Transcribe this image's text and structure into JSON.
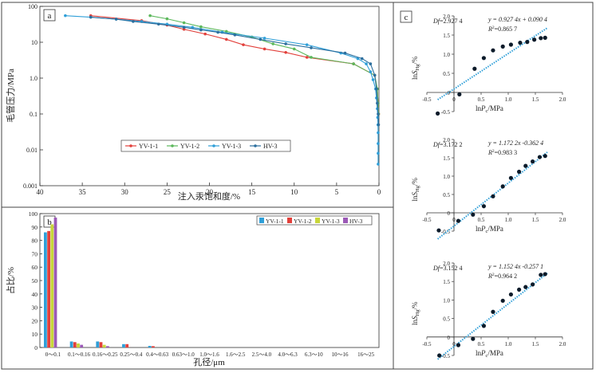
{
  "panels": {
    "a": {
      "label": "a",
      "type": "line",
      "xlabel": "注入汞饱和度/%",
      "ylabel": "毛管压力/MPa",
      "y_scale": "log",
      "x_reversed": true,
      "xlim": [
        40,
        0
      ],
      "ylim": [
        0.001,
        100
      ],
      "xticks": [
        "40",
        "35",
        "30",
        "25",
        "20",
        "15",
        "10",
        "5",
        "0"
      ],
      "yticks": [
        "100",
        "10",
        "1.0",
        "0.1",
        "0.01",
        "0.001"
      ],
      "legend": [
        "YV-1-1",
        "YV-1-2",
        "YV-1-3",
        "HV-3"
      ],
      "colors": [
        "#e2403b",
        "#5cb85c",
        "#2f9fd8",
        "#2c6f9e"
      ],
      "chart_data": {
        "type": "line",
        "series": [
          {
            "name": "YV-1-1",
            "x": [
              34,
              28,
              25,
              23,
              20.5,
              18,
              16,
              13.5,
              11,
              8.5,
              3,
              0.5,
              0.2,
              0.1,
              0.05
            ],
            "y": [
              55,
              40,
              30,
              23,
              17,
              12,
              8.5,
              6.5,
              5.2,
              3.8,
              2.5,
              1.2,
              0.5,
              0.2,
              0.1
            ]
          },
          {
            "name": "YV-1-2",
            "x": [
              27,
              25,
              23,
              21,
              18,
              15,
              12.5,
              10,
              8,
              3,
              0.5,
              0.2,
              0.1,
              0.05
            ],
            "y": [
              55,
              45,
              35,
              27,
              20,
              14,
              9,
              6.5,
              3.8,
              2.5,
              1.2,
              0.5,
              0.2,
              0.1
            ]
          },
          {
            "name": "YV-1-3",
            "x": [
              37,
              34,
              31,
              28,
              25,
              22,
              18.5,
              13.5,
              8.5,
              4.5,
              2.5,
              1.5,
              1,
              0.7,
              0.4,
              0.3,
              0.2,
              0.15,
              0.12,
              0.1,
              0.1,
              0.1,
              0.1
            ],
            "y": [
              55,
              50,
              44,
              38,
              32,
              26,
              19,
              13,
              8.5,
              5,
              3.5,
              2.5,
              1.5,
              0.9,
              0.5,
              0.28,
              0.14,
              0.08,
              0.05,
              0.03,
              0.015,
              0.008,
              0.004
            ]
          },
          {
            "name": "HV-3",
            "x": [
              34,
              31,
              29,
              26,
              23,
              21,
              19,
              17,
              14,
              11,
              8,
              4,
              2,
              1,
              0.5,
              0.3,
              0.2,
              0.1,
              0.05
            ],
            "y": [
              50,
              44,
              38,
              32,
              26,
              22,
              19,
              16,
              12,
              9,
              7,
              5,
              3.5,
              2.5,
              1.2,
              0.5,
              0.2,
              0.1,
              0.05
            ]
          }
        ]
      }
    },
    "b": {
      "label": "b",
      "type": "bar",
      "xlabel": "孔径/μm",
      "ylabel": "占比/%",
      "ylim": [
        0,
        100
      ],
      "yticks": [
        "0",
        "10",
        "20",
        "30",
        "40",
        "50",
        "60",
        "70",
        "80",
        "90",
        "100"
      ],
      "legend": [
        "YV-1-1",
        "YV-1-2",
        "YV-1-3",
        "HV-3"
      ],
      "colors": [
        "#2f9fd8",
        "#e2403b",
        "#c8d63a",
        "#9b59b6"
      ],
      "chart_data": {
        "type": "bar",
        "categories": [
          "0～0.1",
          "0.1～0.16",
          "0.16～0.25",
          "0.25～0.4",
          "0.4～0.63",
          "0.63～1.0",
          "1.0～1.6",
          "1.6～2.5",
          "2.5～4.0",
          "4.0～6.3",
          "6.3～10",
          "10～16",
          "16～25"
        ],
        "series": [
          {
            "name": "YV-1-1",
            "values": [
              86,
              4.5,
              4.5,
              2.5,
              1.2,
              0,
              0,
              0,
              0,
              0,
              0,
              0,
              0
            ]
          },
          {
            "name": "YV-1-2",
            "values": [
              87,
              4,
              4,
              2.5,
              1,
              0,
              0,
              0,
              0,
              0,
              0,
              0,
              0
            ]
          },
          {
            "name": "YV-1-3",
            "values": [
              92,
              3,
              2,
              0,
              0,
              0,
              0,
              0,
              0,
              0,
              0,
              0,
              0
            ]
          },
          {
            "name": "HV-3",
            "values": [
              97,
              2,
              1,
              0,
              0,
              0,
              0,
              0,
              0,
              0,
              0,
              0,
              0
            ]
          }
        ]
      }
    },
    "c": {
      "label": "c",
      "type": "scatter",
      "xlabel_main": "ln",
      "xlabel_var": "P",
      "xlabel_sub": "c",
      "xlabel_unit": "/MPa",
      "ylabel_main": "ln",
      "ylabel_var": "S",
      "ylabel_sub": "Hg",
      "ylabel_unit": "/%",
      "xlim": [
        -0.5,
        2.0
      ],
      "ylim": [
        -0.5,
        2.0
      ],
      "xticks": [
        "-0.5",
        "0",
        "0.5",
        "1.0",
        "1.5",
        "2.0"
      ],
      "yticks": [
        "-0.5",
        "0",
        "0.5",
        "1.0",
        "1.5",
        "2.0"
      ],
      "point_color": "#0c1b2a",
      "fit_color": "#2f9fd8",
      "plots": [
        {
          "df_label": "Df",
          "df_value": "=2.927 4",
          "eq": "y = 0.927 4x + 0.090 4",
          "r2_label": "R",
          "r2_value": "=0.865 7",
          "chart_data": {
            "type": "scatter",
            "x": [
              -0.3,
              0.1,
              0.38,
              0.55,
              0.72,
              0.9,
              1.05,
              1.22,
              1.35,
              1.48,
              1.6,
              1.68
            ],
            "y": [
              -0.55,
              -0.05,
              0.62,
              0.9,
              1.1,
              1.2,
              1.25,
              1.3,
              1.32,
              1.38,
              1.42,
              1.43
            ],
            "fit": {
              "slope": 0.9274,
              "intercept": 0.0904
            }
          }
        },
        {
          "df_label": "Df",
          "df_value": "=3.172 2",
          "eq": "y = 1.172 2x -0.362 4",
          "r2_label": "R",
          "r2_value": "=0.983 3",
          "chart_data": {
            "type": "scatter",
            "x": [
              -0.28,
              0.08,
              0.35,
              0.55,
              0.72,
              0.9,
              1.05,
              1.2,
              1.32,
              1.45,
              1.58,
              1.68
            ],
            "y": [
              -0.48,
              -0.22,
              -0.05,
              0.18,
              0.45,
              0.72,
              0.95,
              1.12,
              1.28,
              1.4,
              1.52,
              1.55
            ],
            "fit": {
              "slope": 1.1722,
              "intercept": -0.3624
            }
          }
        },
        {
          "df_label": "Df",
          "df_value": "=3.152 4",
          "eq": "y = 1.152 4x -0.257 1",
          "r2_label": "R",
          "r2_value": "=0.964 2",
          "chart_data": {
            "type": "scatter",
            "x": [
              -0.27,
              0.08,
              0.35,
              0.55,
              0.72,
              0.9,
              1.05,
              1.2,
              1.32,
              1.45,
              1.6,
              1.68
            ],
            "y": [
              -0.5,
              -0.22,
              -0.05,
              0.3,
              0.68,
              0.98,
              1.15,
              1.28,
              1.35,
              1.42,
              1.68,
              1.7
            ],
            "fit": {
              "slope": 1.1524,
              "intercept": -0.2571
            }
          }
        }
      ]
    }
  }
}
